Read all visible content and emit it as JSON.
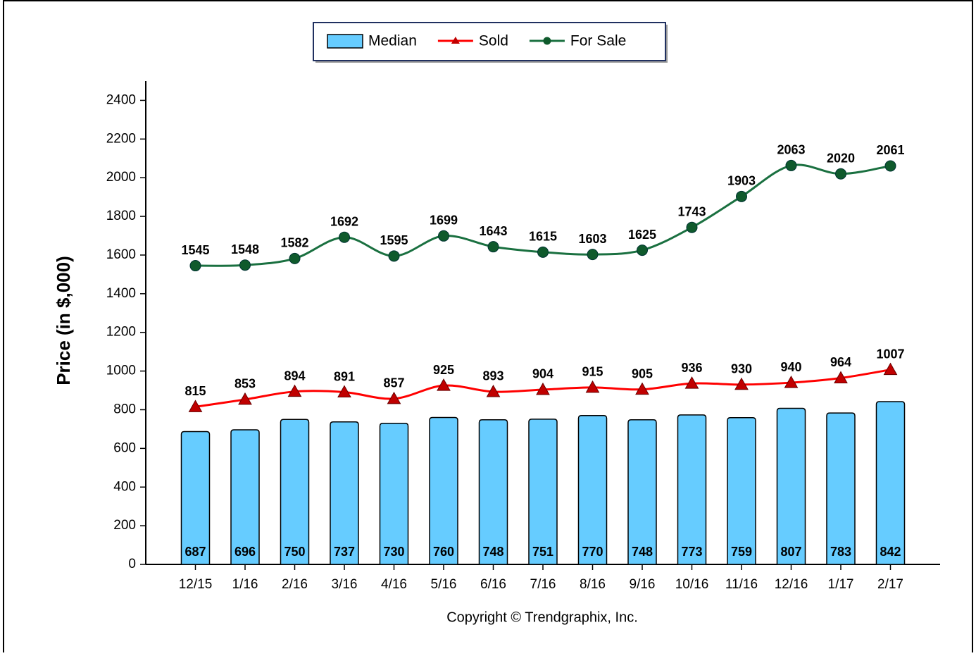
{
  "chart_data": {
    "type": "bar",
    "y_label": "Price (in $,000)",
    "footer": "Copyright © Trendgraphix, Inc.",
    "categories": [
      "12/15",
      "1/16",
      "2/16",
      "3/16",
      "4/16",
      "5/16",
      "6/16",
      "7/16",
      "8/16",
      "9/16",
      "10/16",
      "11/16",
      "12/16",
      "1/17",
      "2/17"
    ],
    "series": [
      {
        "name": "Median",
        "type": "bar",
        "color": "#66ccff",
        "values": [
          687,
          696,
          750,
          737,
          730,
          760,
          748,
          751,
          770,
          748,
          773,
          759,
          807,
          783,
          842
        ]
      },
      {
        "name": "Sold",
        "type": "line",
        "marker": "triangle",
        "color": "#ff0000",
        "marker_color": "#c00000",
        "values": [
          815,
          853,
          894,
          891,
          857,
          925,
          893,
          904,
          915,
          905,
          936,
          930,
          940,
          964,
          1007
        ]
      },
      {
        "name": "For Sale",
        "type": "line",
        "marker": "circle",
        "color": "#1a7040",
        "marker_color": "#0f5a2c",
        "values": [
          1545,
          1548,
          1582,
          1692,
          1595,
          1699,
          1643,
          1615,
          1603,
          1625,
          1743,
          1903,
          2063,
          2020,
          2061
        ]
      }
    ],
    "ylim": [
      0,
      2500
    ],
    "yticks": [
      0,
      200,
      400,
      600,
      800,
      1000,
      1200,
      1400,
      1600,
      1800,
      2000,
      2200,
      2400
    ],
    "grid": false
  }
}
